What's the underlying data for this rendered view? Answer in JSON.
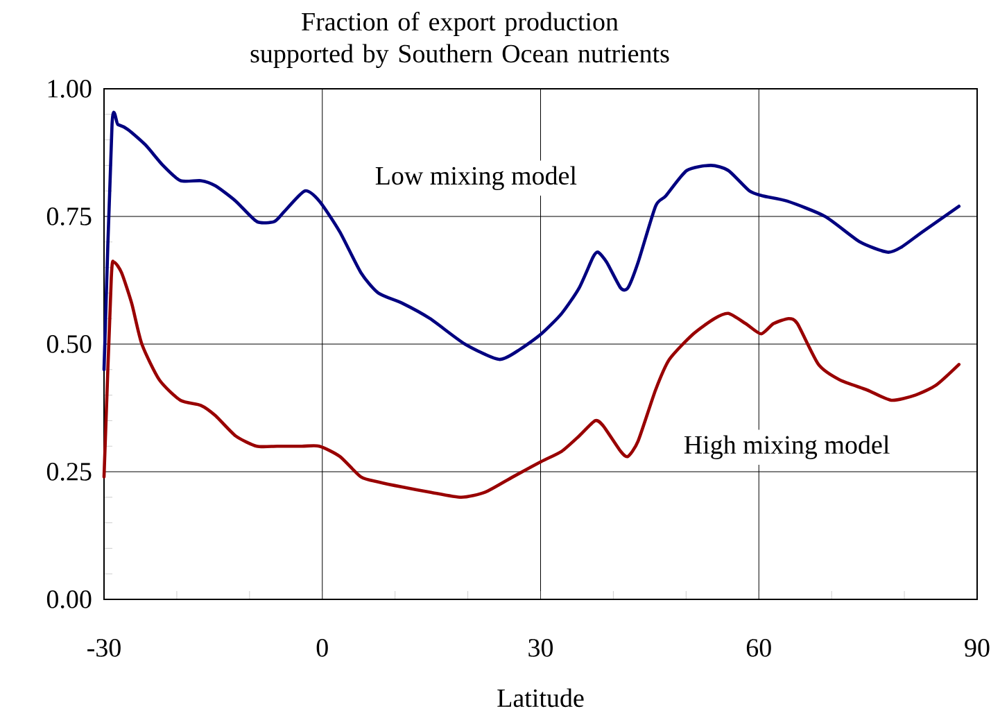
{
  "chart_data": {
    "type": "line",
    "title": "Fraction of export production supported by Southern Ocean nutrients",
    "xlabel": "Latitude",
    "xlim": [
      -30,
      90
    ],
    "ylim": [
      0,
      1
    ],
    "xticks": [
      -30,
      {
        "value": -20,
        "label": null
      },
      {
        "value": -10,
        "label": null
      },
      0,
      {
        "value": 10,
        "label": null
      },
      {
        "value": 20,
        "label": null
      },
      30,
      {
        "value": 40,
        "label": null
      },
      {
        "value": 50,
        "label": null
      },
      60,
      {
        "value": 70,
        "label": null
      },
      {
        "value": 80,
        "label": null
      },
      90
    ],
    "yticks": [
      {
        "value": 0,
        "label": "0.00"
      },
      {
        "value": 0.05,
        "label": null
      },
      {
        "value": 0.1,
        "label": null
      },
      {
        "value": 0.15,
        "label": null
      },
      {
        "value": 0.2,
        "label": null
      },
      {
        "value": 0.25,
        "label": "0.25"
      },
      {
        "value": 0.3,
        "label": null
      },
      {
        "value": 0.35,
        "label": null
      },
      {
        "value": 0.4,
        "label": null
      },
      {
        "value": 0.45,
        "label": null
      },
      {
        "value": 0.5,
        "label": "0.50"
      },
      {
        "value": 0.55,
        "label": null
      },
      {
        "value": 0.6,
        "label": null
      },
      {
        "value": 0.65,
        "label": null
      },
      {
        "value": 0.7,
        "label": null
      },
      {
        "value": 0.75,
        "label": "0.75"
      },
      {
        "value": 0.8,
        "label": null
      },
      {
        "value": 0.85,
        "label": null
      },
      {
        "value": 0.9,
        "label": null
      },
      {
        "value": 0.95,
        "label": null
      },
      {
        "value": 1,
        "label": "1.00"
      }
    ],
    "grid": true,
    "series": [
      {
        "name": "Low mixing model",
        "color": "#000080",
        "x": [
          -30,
          -28.9,
          -28.1,
          -26.7,
          -24.3,
          -21.9,
          -19.5,
          -16.7,
          -14.7,
          -11.9,
          -9.0,
          -6.6,
          -5.2,
          -2.4,
          -0.4,
          2.4,
          5.3,
          7.7,
          11.0,
          14.8,
          19.6,
          24.3,
          27.2,
          30.1,
          32.9,
          35.3,
          37.2,
          37.9,
          39.1,
          41.0,
          42.0,
          43.4,
          45.8,
          47.2,
          50.1,
          53.4,
          55.8,
          58.7,
          60.6,
          63.9,
          69.1,
          73.9,
          77.7,
          79.6,
          82.5,
          87.5
        ],
        "values": [
          0.45,
          0.93,
          0.93,
          0.92,
          0.89,
          0.85,
          0.82,
          0.82,
          0.81,
          0.78,
          0.74,
          0.74,
          0.76,
          0.8,
          0.78,
          0.72,
          0.64,
          0.6,
          0.58,
          0.55,
          0.5,
          0.47,
          0.49,
          0.52,
          0.56,
          0.61,
          0.67,
          0.68,
          0.66,
          0.61,
          0.61,
          0.66,
          0.77,
          0.79,
          0.84,
          0.85,
          0.84,
          0.8,
          0.79,
          0.78,
          0.75,
          0.7,
          0.68,
          0.69,
          0.72,
          0.77
        ]
      },
      {
        "name": "High mixing model",
        "color": "#990000",
        "x": [
          -30,
          -29.0,
          -28.6,
          -27.6,
          -26.2,
          -24.8,
          -22.4,
          -19.5,
          -16.7,
          -14.7,
          -11.9,
          -9.0,
          -6.2,
          -2.8,
          -0.4,
          2.4,
          5.3,
          7.7,
          11.0,
          14.8,
          19.1,
          22.4,
          26.2,
          30.1,
          32.9,
          35.3,
          37.5,
          38.6,
          41.0,
          42.0,
          43.4,
          45.8,
          47.7,
          51.0,
          53.9,
          55.8,
          58.2,
          60.3,
          62.0,
          64.1,
          65.3,
          68.2,
          71.1,
          74.9,
          78.2,
          81.5,
          84.4,
          87.5
        ],
        "values": [
          0.24,
          0.63,
          0.66,
          0.64,
          0.58,
          0.5,
          0.43,
          0.39,
          0.38,
          0.36,
          0.32,
          0.3,
          0.3,
          0.3,
          0.3,
          0.28,
          0.24,
          0.23,
          0.22,
          0.21,
          0.2,
          0.21,
          0.24,
          0.27,
          0.29,
          0.32,
          0.35,
          0.34,
          0.29,
          0.28,
          0.31,
          0.41,
          0.47,
          0.52,
          0.55,
          0.56,
          0.54,
          0.52,
          0.54,
          0.55,
          0.54,
          0.46,
          0.43,
          0.41,
          0.39,
          0.4,
          0.42,
          0.46
        ]
      }
    ]
  }
}
